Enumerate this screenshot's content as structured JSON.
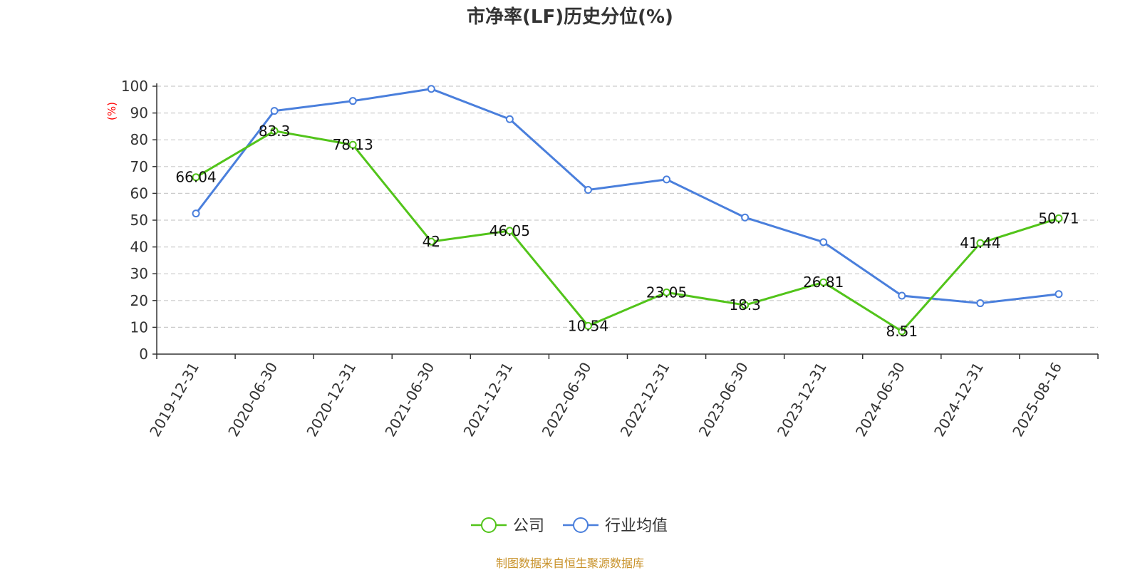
{
  "chart_data": {
    "type": "line",
    "title": "市净率(LF)历史分位(%)",
    "y_unit_label": "(%)",
    "categories": [
      "2019-12-31",
      "2020-06-30",
      "2020-12-31",
      "2021-06-30",
      "2021-12-31",
      "2022-06-30",
      "2022-12-31",
      "2023-06-30",
      "2023-12-31",
      "2024-06-30",
      "2024-12-31",
      "2025-08-16"
    ],
    "ylim": [
      0,
      100
    ],
    "yticks": [
      "0",
      "10",
      "20",
      "30",
      "40",
      "50",
      "60",
      "70",
      "80",
      "90",
      "100"
    ],
    "grid": true,
    "legend_position": "bottom-center",
    "series": [
      {
        "name": "公司",
        "color": "#52c41a",
        "values": [
          66.04,
          83.3,
          78.13,
          42,
          46.05,
          10.54,
          23.05,
          18.3,
          26.81,
          8.51,
          41.44,
          50.71
        ],
        "labels": [
          "66.04",
          "83.3",
          "78.13",
          "42",
          "46.05",
          "10.54",
          "23.05",
          "18.3",
          "26.81",
          "8.51",
          "41.44",
          "50.71"
        ]
      },
      {
        "name": "行业均值",
        "color": "#4a7fdc",
        "values": [
          52.5,
          90.8,
          94.5,
          99.0,
          87.7,
          61.3,
          65.2,
          51.0,
          41.8,
          21.8,
          19.0,
          22.4
        ]
      }
    ]
  },
  "source": "制图数据来自恒生聚源数据库"
}
